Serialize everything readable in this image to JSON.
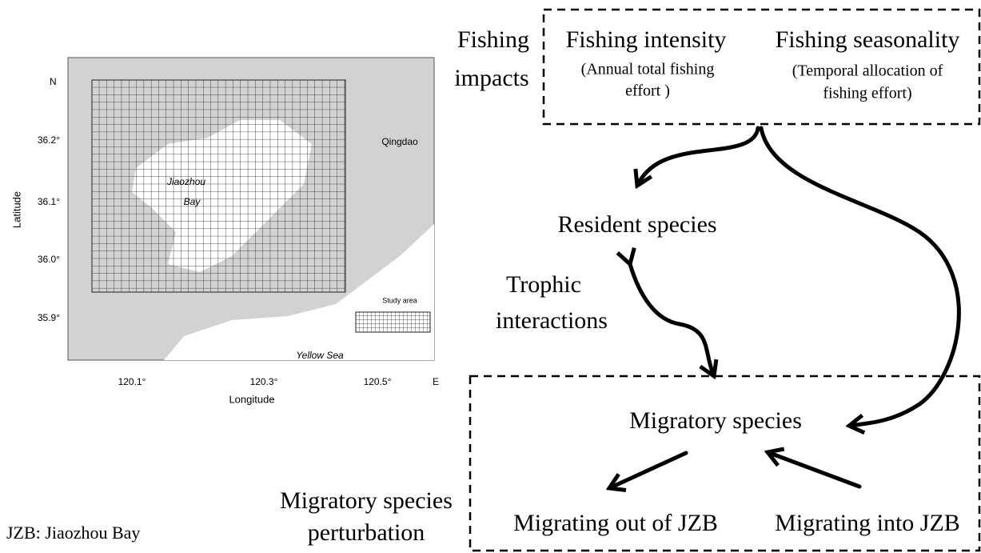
{
  "map": {
    "north": "N",
    "east": "E",
    "y_ticks": [
      "36.2°",
      "36.1°",
      "36.0°",
      "35.9°"
    ],
    "x_ticks": [
      "120.1°",
      "120.3°",
      "120.5°"
    ],
    "x_label": "Longitude",
    "y_label": "Latitude",
    "places": {
      "city": "Qingdao",
      "bay_line1": "Jiaozhou",
      "bay_line2": "Bay",
      "sea": "Yellow Sea",
      "legend": "Study area"
    }
  },
  "diagram": {
    "fishing_impacts": [
      "Fishing",
      "impacts"
    ],
    "fishing_intensity": {
      "title": "Fishing intensity",
      "note": [
        "(Annual total fishing",
        "effort )"
      ]
    },
    "fishing_seasonality": {
      "title": "Fishing seasonality",
      "note": [
        "(Temporal allocation of",
        "fishing effort)"
      ]
    },
    "resident": "Resident species",
    "trophic": [
      "Trophic",
      "interactions"
    ],
    "migratory": "Migratory species",
    "migrating_out": "Migrating out of JZB",
    "migrating_in": "Migrating into JZB",
    "perturbation": [
      "Migratory species",
      "perturbation"
    ]
  },
  "footnote": "JZB: Jiaozhou Bay"
}
